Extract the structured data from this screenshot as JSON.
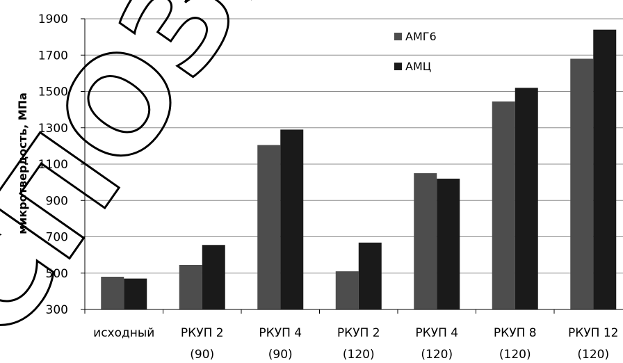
{
  "watermark": "СПОЗИТ",
  "chart_data": {
    "type": "bar",
    "title": "",
    "xlabel": "",
    "ylabel": "микротвердость, МПа",
    "ylim": [
      300,
      1900
    ],
    "yticks": [
      300,
      500,
      700,
      900,
      1100,
      1300,
      1500,
      1700,
      1900
    ],
    "grid": true,
    "legend_position": "top-right",
    "categories": [
      [
        "исходный"
      ],
      [
        "РКУП 2",
        "(90)"
      ],
      [
        "РКУП 4",
        "(90)"
      ],
      [
        "РКУП 2",
        "(120)"
      ],
      [
        "РКУП 4",
        "(120)"
      ],
      [
        "РКУП 8",
        "(120)"
      ],
      [
        "РКУП 12",
        "(120)"
      ]
    ],
    "series": [
      {
        "name": "АМГ6",
        "color": "#4d4d4d",
        "values": [
          480,
          545,
          1205,
          510,
          1050,
          1445,
          1680
        ]
      },
      {
        "name": "АМЦ",
        "color": "#1a1a1a",
        "values": [
          470,
          655,
          1290,
          668,
          1020,
          1520,
          1840
        ]
      }
    ]
  }
}
